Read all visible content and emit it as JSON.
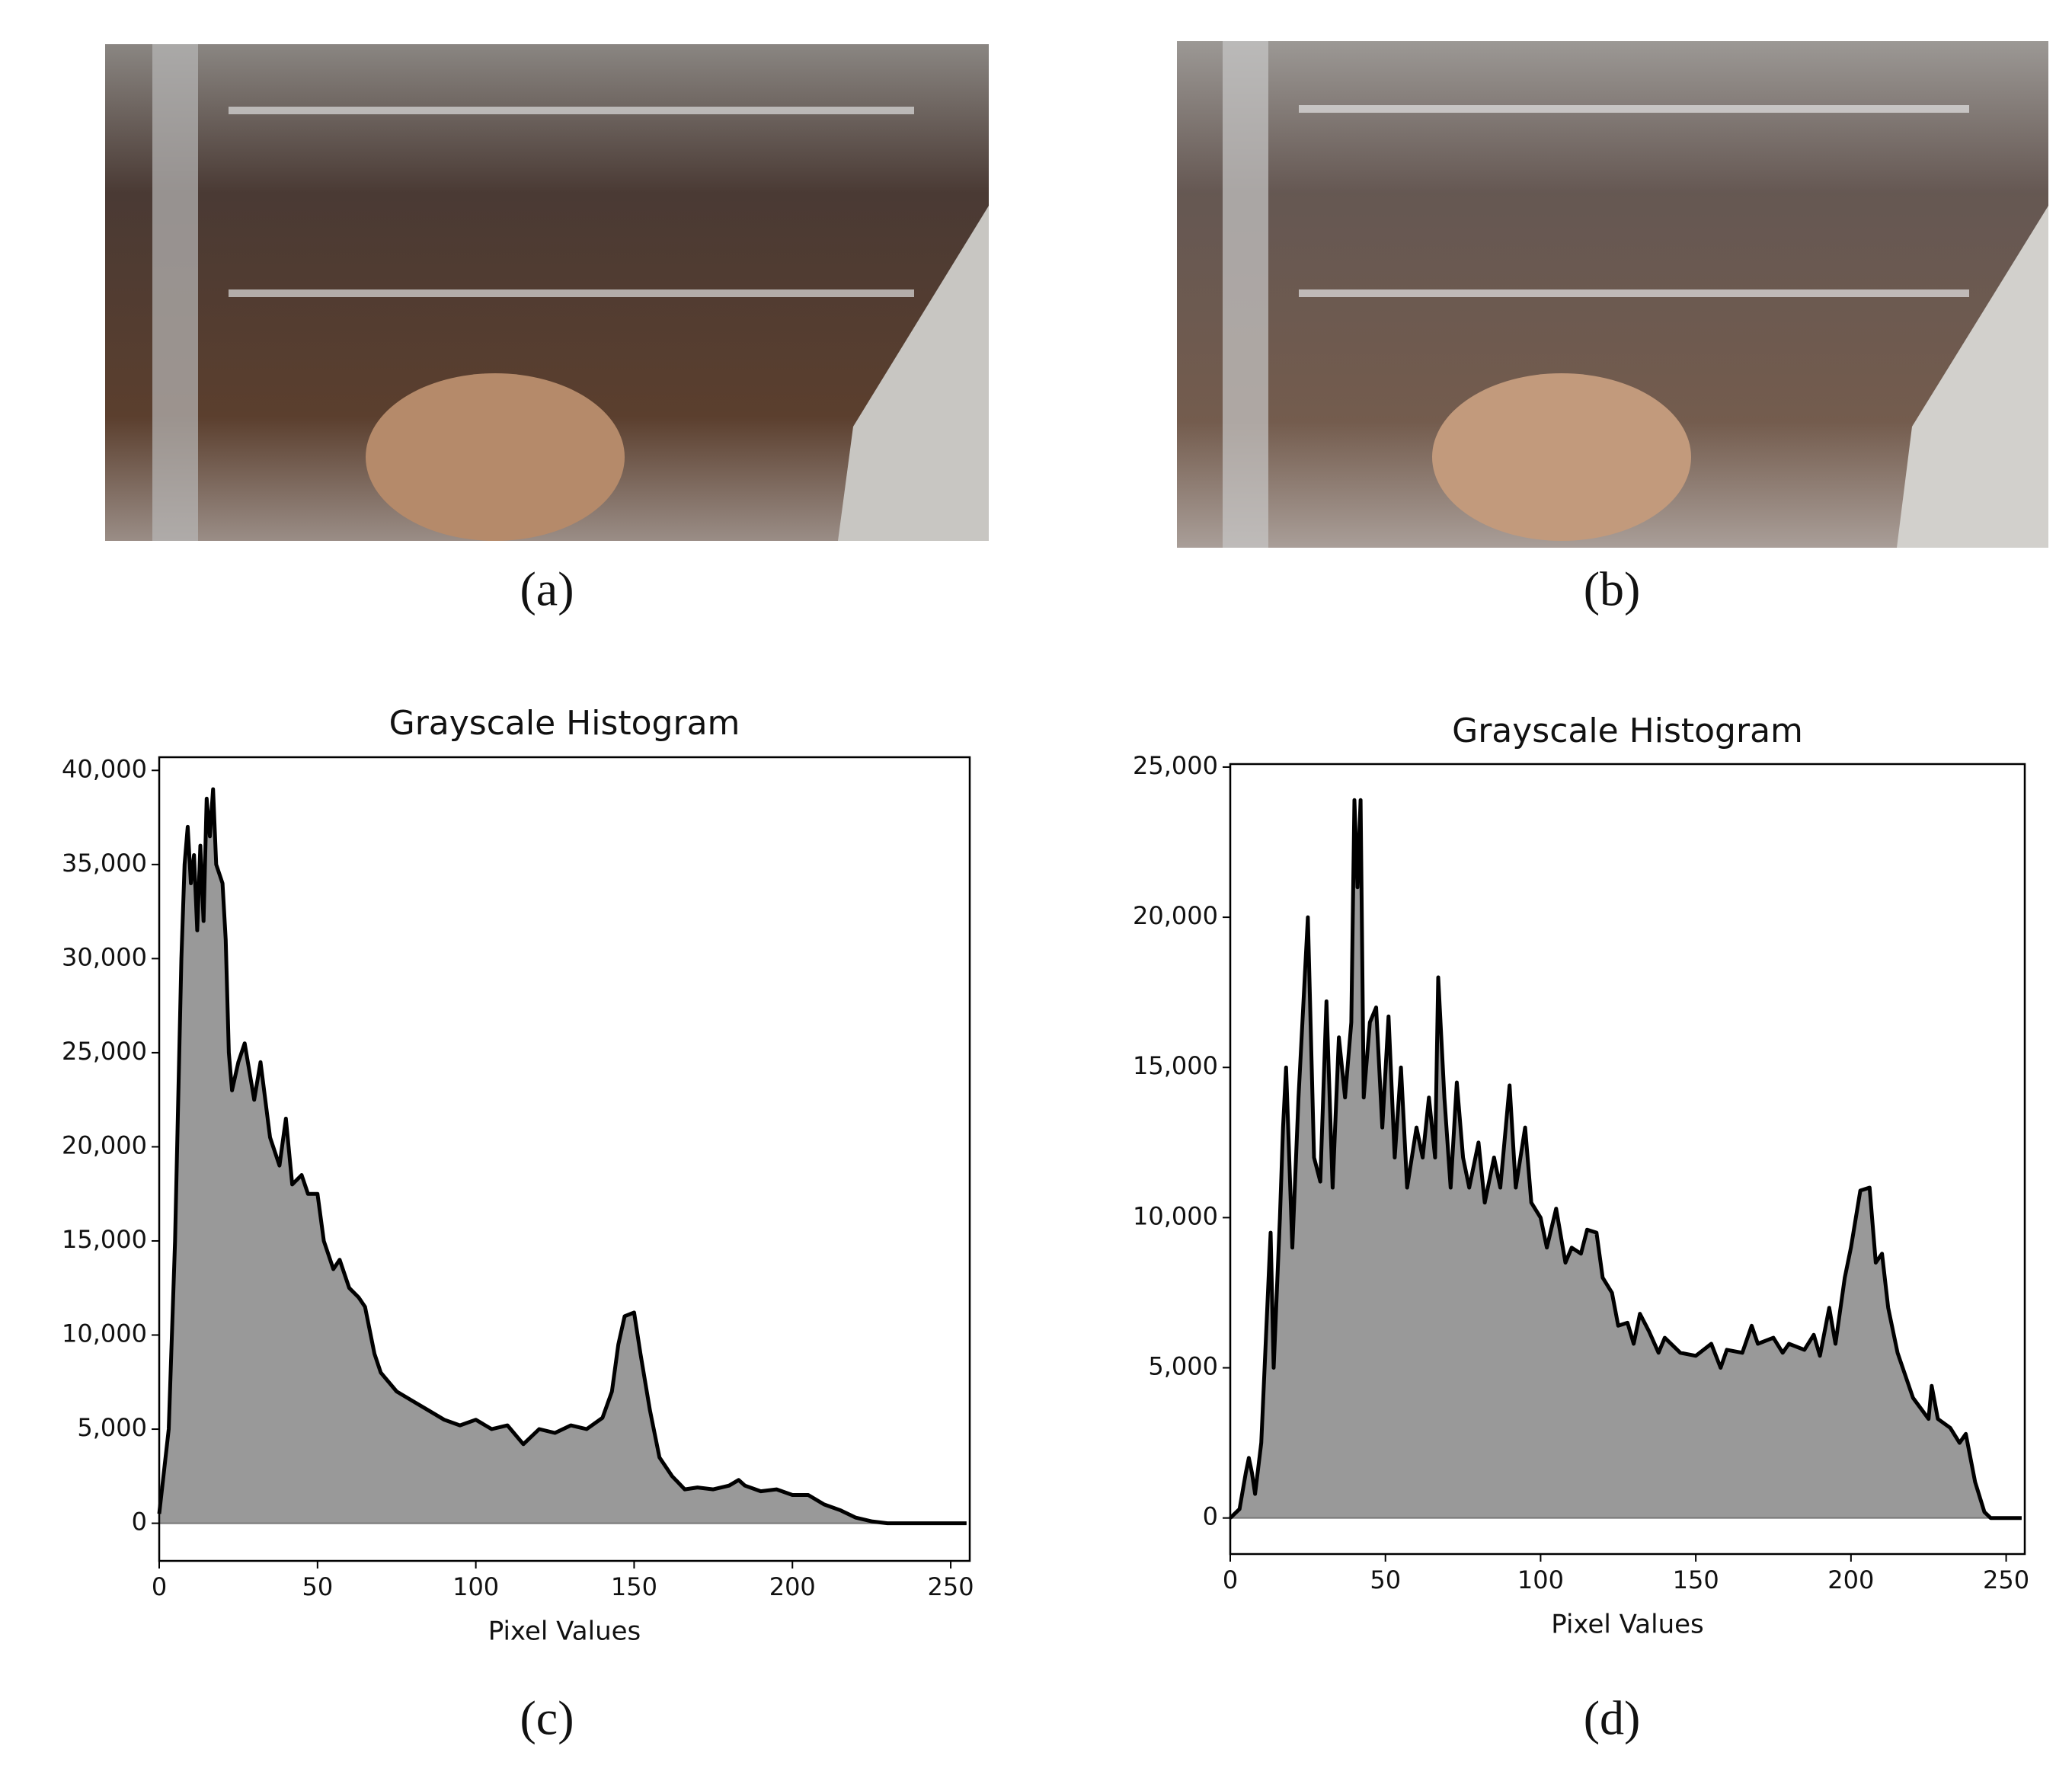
{
  "captions": [
    "(a)",
    "(b)",
    "(c)",
    "(d)"
  ],
  "chart_data": [
    {
      "type": "area",
      "title": "Grayscale Histogram",
      "xlabel": "Pixel Values",
      "color": "#999999",
      "line_color": "#000000",
      "xlim": [
        0,
        256
      ],
      "ylim": [
        -2000,
        40700
      ],
      "xticks": [
        0,
        50,
        100,
        150,
        200,
        250
      ],
      "yticks": [
        0,
        {
          "value": 5000,
          "label": "5,000"
        },
        {
          "value": 10000,
          "label": "10,000"
        },
        {
          "value": 15000,
          "label": "15,000"
        },
        {
          "value": 20000,
          "label": "20,000"
        },
        {
          "value": 25000,
          "label": "25,000"
        },
        {
          "value": 30000,
          "label": "30,000"
        },
        {
          "value": 35000,
          "label": "35,000"
        },
        {
          "value": 40000,
          "label": "40,000"
        }
      ],
      "x": [
        0,
        3,
        5,
        7,
        8,
        9,
        10,
        11,
        12,
        13,
        14,
        15,
        16,
        17,
        18,
        20,
        21,
        22,
        23,
        25,
        27,
        30,
        32,
        35,
        38,
        40,
        42,
        45,
        47,
        50,
        52,
        55,
        57,
        60,
        63,
        65,
        68,
        70,
        75,
        80,
        85,
        90,
        95,
        100,
        105,
        110,
        115,
        120,
        125,
        130,
        135,
        140,
        143,
        145,
        147,
        150,
        152,
        155,
        158,
        162,
        166,
        170,
        175,
        180,
        183,
        185,
        190,
        195,
        200,
        205,
        210,
        215,
        220,
        225,
        230,
        240,
        255
      ],
      "values": [
        500,
        5000,
        15000,
        30000,
        35000,
        37000,
        34000,
        35500,
        31500,
        36000,
        32000,
        38500,
        36500,
        39000,
        35000,
        34000,
        31000,
        25000,
        23000,
        24500,
        25500,
        22500,
        24500,
        20500,
        19000,
        21500,
        18000,
        18500,
        17500,
        17500,
        15000,
        13500,
        14000,
        12500,
        12000,
        11500,
        9000,
        8000,
        7000,
        6500,
        6000,
        5500,
        5200,
        5500,
        5000,
        5200,
        4200,
        5000,
        4800,
        5200,
        5000,
        5600,
        7000,
        9500,
        11000,
        11200,
        9000,
        6000,
        3500,
        2500,
        1800,
        1900,
        1800,
        2000,
        2300,
        2000,
        1700,
        1800,
        1500,
        1500,
        1000,
        700,
        300,
        100,
        0,
        0,
        0
      ]
    },
    {
      "type": "area",
      "title": "Grayscale Histogram",
      "xlabel": "Pixel Values",
      "color": "#999999",
      "line_color": "#000000",
      "xlim": [
        0,
        256
      ],
      "ylim": [
        -1200,
        25100
      ],
      "xticks": [
        0,
        50,
        100,
        150,
        200,
        250
      ],
      "yticks": [
        0,
        {
          "value": 5000,
          "label": "5,000"
        },
        {
          "value": 10000,
          "label": "10,000"
        },
        {
          "value": 15000,
          "label": "15,000"
        },
        {
          "value": 20000,
          "label": "20,000"
        },
        {
          "value": 25000,
          "label": "25,000"
        }
      ],
      "x": [
        0,
        3,
        5,
        6,
        7,
        8,
        10,
        13,
        14,
        16,
        17,
        18,
        20,
        22,
        24,
        25,
        27,
        29,
        31,
        33,
        35,
        37,
        39,
        40,
        41,
        42,
        43,
        45,
        47,
        49,
        51,
        53,
        55,
        57,
        60,
        62,
        64,
        66,
        67,
        69,
        71,
        73,
        75,
        77,
        80,
        82,
        85,
        87,
        90,
        92,
        95,
        97,
        100,
        102,
        105,
        108,
        110,
        113,
        115,
        118,
        120,
        123,
        125,
        128,
        130,
        132,
        135,
        138,
        140,
        145,
        150,
        155,
        158,
        160,
        165,
        168,
        170,
        175,
        178,
        180,
        185,
        188,
        190,
        193,
        195,
        198,
        200,
        203,
        206,
        208,
        210,
        212,
        215,
        220,
        225,
        226,
        228,
        232,
        235,
        237,
        240,
        243,
        245,
        255
      ],
      "values": [
        0,
        300,
        1500,
        2000,
        1500,
        800,
        2500,
        9500,
        5000,
        10000,
        13000,
        15000,
        9000,
        14000,
        18000,
        20000,
        12000,
        11200,
        17200,
        11000,
        16000,
        14000,
        16500,
        23900,
        21000,
        23900,
        14000,
        16500,
        17000,
        13000,
        16700,
        12000,
        15000,
        11000,
        13000,
        12000,
        14000,
        12000,
        18000,
        14000,
        11000,
        14500,
        12000,
        11000,
        12500,
        10500,
        12000,
        11000,
        14400,
        11000,
        13000,
        10500,
        10000,
        9000,
        10300,
        8500,
        9000,
        8800,
        9600,
        9500,
        8000,
        7500,
        6400,
        6500,
        5800,
        6800,
        6200,
        5500,
        6000,
        5500,
        5400,
        5800,
        5000,
        5600,
        5500,
        6400,
        5800,
        6000,
        5500,
        5800,
        5600,
        6100,
        5400,
        7000,
        5800,
        8000,
        9000,
        10900,
        11000,
        8500,
        8800,
        7000,
        5500,
        4000,
        3300,
        4400,
        3300,
        3000,
        2500,
        2800,
        1200,
        200,
        0,
        0
      ]
    }
  ]
}
